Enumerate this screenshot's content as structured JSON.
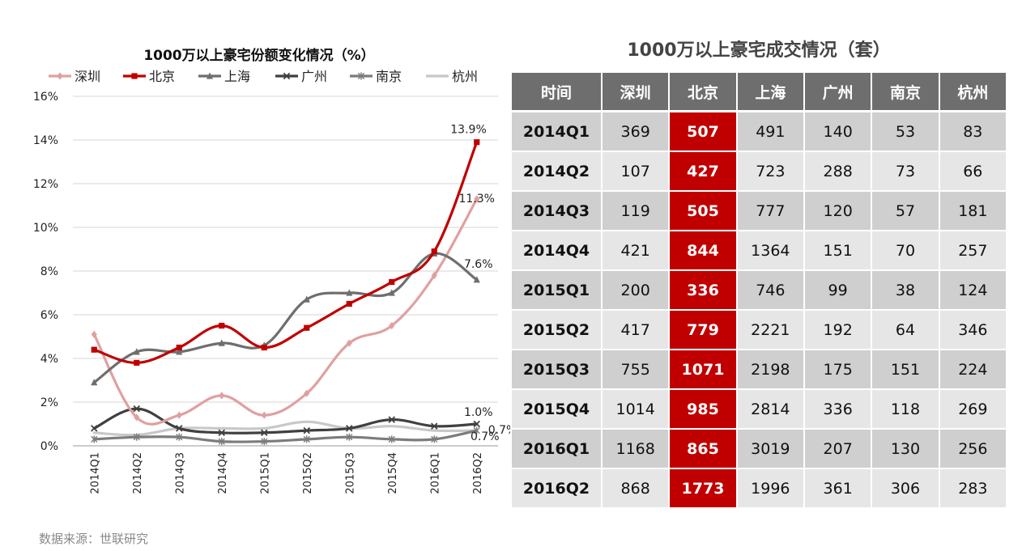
{
  "chart_data": {
    "type": "line",
    "title": "1000万以上豪宅份额变化情况（%）",
    "categories": [
      "2014Q1",
      "2014Q2",
      "2014Q3",
      "2014Q4",
      "2015Q1",
      "2015Q2",
      "2015Q3",
      "2015Q4",
      "2016Q1",
      "2016Q2"
    ],
    "ylim": [
      0,
      16
    ],
    "y_ticks": [
      "0%",
      "2%",
      "4%",
      "6%",
      "8%",
      "10%",
      "12%",
      "14%",
      "16%"
    ],
    "grid": true,
    "legend_position": "top",
    "series": [
      {
        "name": "深圳",
        "color": "#e0a0a0",
        "marker": "diamond",
        "values": [
          5.1,
          1.3,
          1.4,
          2.3,
          1.4,
          2.4,
          4.7,
          5.5,
          7.8,
          11.3
        ]
      },
      {
        "name": "北京",
        "color": "#c00000",
        "marker": "square",
        "values": [
          4.4,
          3.8,
          4.5,
          5.5,
          4.5,
          5.4,
          6.5,
          7.5,
          8.9,
          13.9
        ]
      },
      {
        "name": "上海",
        "color": "#6e6e6e",
        "marker": "triangle",
        "values": [
          2.9,
          4.3,
          4.3,
          4.7,
          4.6,
          6.7,
          7.0,
          7.0,
          8.8,
          7.6
        ]
      },
      {
        "name": "广州",
        "color": "#404040",
        "marker": "x",
        "values": [
          0.8,
          1.7,
          0.8,
          0.6,
          0.6,
          0.7,
          0.8,
          1.2,
          0.9,
          1.0
        ]
      },
      {
        "name": "南京",
        "color": "#7c7c7c",
        "marker": "star",
        "values": [
          0.3,
          0.4,
          0.4,
          0.2,
          0.2,
          0.3,
          0.4,
          0.3,
          0.3,
          0.7
        ]
      },
      {
        "name": "杭州",
        "color": "#c8c8c8",
        "marker": "none",
        "values": [
          0.6,
          0.5,
          0.8,
          0.8,
          0.8,
          1.1,
          0.8,
          0.9,
          0.7,
          0.7
        ]
      }
    ],
    "annotations": [
      "13.9%",
      "11.3%",
      "7.6%",
      "1.0%",
      "0.7%",
      "0.7%"
    ]
  },
  "table": {
    "title": "1000万以上豪宅成交情况（套）",
    "headers": [
      "时间",
      "深圳",
      "北京",
      "上海",
      "广州",
      "南京",
      "杭州"
    ],
    "rows": [
      [
        "2014Q1",
        "369",
        "507",
        "491",
        "140",
        "53",
        "83"
      ],
      [
        "2014Q2",
        "107",
        "427",
        "723",
        "288",
        "73",
        "66"
      ],
      [
        "2014Q3",
        "119",
        "505",
        "777",
        "120",
        "57",
        "181"
      ],
      [
        "2014Q4",
        "421",
        "844",
        "1364",
        "151",
        "70",
        "257"
      ],
      [
        "2015Q1",
        "200",
        "336",
        "746",
        "99",
        "38",
        "124"
      ],
      [
        "2015Q2",
        "417",
        "779",
        "2221",
        "192",
        "64",
        "346"
      ],
      [
        "2015Q3",
        "755",
        "1071",
        "2198",
        "175",
        "151",
        "224"
      ],
      [
        "2015Q4",
        "1014",
        "985",
        "2814",
        "336",
        "118",
        "269"
      ],
      [
        "2016Q1",
        "1168",
        "865",
        "3019",
        "207",
        "130",
        "256"
      ],
      [
        "2016Q2",
        "868",
        "1773",
        "1996",
        "361",
        "306",
        "283"
      ]
    ]
  },
  "source": "数据来源：世联研究"
}
